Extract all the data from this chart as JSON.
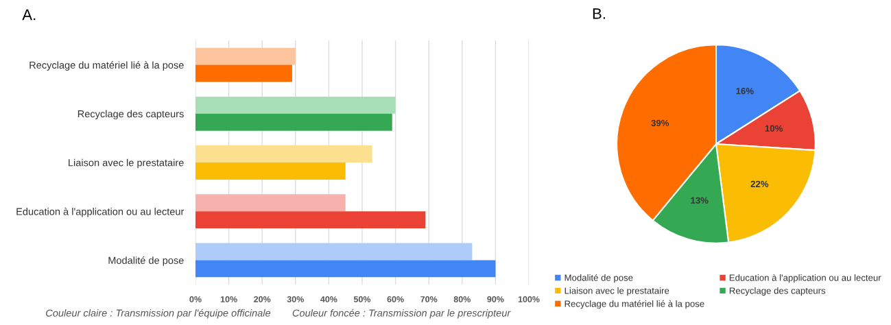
{
  "chart_data": [
    {
      "type": "bar",
      "title": "A.",
      "orientation": "horizontal",
      "categories": [
        "Recyclage du matériel lié à la pose",
        "Recyclage des capteurs",
        "Liaison avec le prestataire",
        "Education à l'application ou au lecteur",
        "Modalité de pose"
      ],
      "series": [
        {
          "colors": [
            "#fcc59e",
            "#a8dfb6",
            "#fde08f",
            "#f7b2ad",
            "#aecbfa"
          ],
          "values": [
            30,
            60,
            53,
            45,
            83
          ]
        },
        {
          "colors": [
            "#ff6d01",
            "#34a853",
            "#fbbc04",
            "#ea4335",
            "#4285f4"
          ],
          "values": [
            29,
            59,
            45,
            69,
            90
          ]
        }
      ],
      "xlim": [
        0,
        100
      ],
      "xticks": [
        {
          "value": 0,
          "label": "0%"
        },
        {
          "value": 10,
          "label": "10%"
        },
        {
          "value": 20,
          "label": "20%"
        },
        {
          "value": 30,
          "label": "30%"
        },
        {
          "value": 40,
          "label": "40%"
        },
        {
          "value": 50,
          "label": "50%"
        },
        {
          "value": 60,
          "label": "60%"
        },
        {
          "value": 70,
          "label": "70%"
        },
        {
          "value": 80,
          "label": "80%"
        },
        {
          "value": 90,
          "label": "90%"
        },
        {
          "value": 100,
          "label": "100%"
        }
      ],
      "grid": "x",
      "annotations": [
        "Couleur claire : Transmission par l'équipe officinale",
        "Couleur foncée : Transmission par le prescripteur"
      ]
    },
    {
      "type": "pie",
      "title": "B.",
      "categories": [
        "Modalité de pose",
        "Education à l'application ou au lecteur",
        "Liaison avec le prestataire",
        "Recyclage des capteurs",
        "Recyclage du matériel lié à la pose"
      ],
      "values": [
        16,
        10,
        22,
        13,
        39
      ],
      "colors": [
        "#4285f4",
        "#ea4335",
        "#fbbc04",
        "#34a853",
        "#ff6d01"
      ],
      "value_labels": [
        "16%",
        "10%",
        "22%",
        "13%",
        "39%"
      ],
      "legend": "bottom"
    }
  ]
}
